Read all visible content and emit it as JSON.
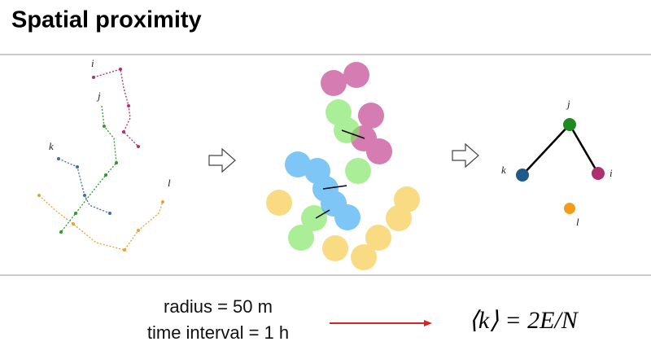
{
  "title": "Spatial proximity",
  "trajectories": {
    "labels": [
      "i",
      "j",
      "k",
      "l"
    ]
  },
  "graph": {
    "nodes": [
      "j",
      "k",
      "i",
      "l"
    ]
  },
  "parameters": [
    "radius = 50 m",
    "time interval = 1 h"
  ],
  "formula": "⟨k⟩ = 2E/N"
}
